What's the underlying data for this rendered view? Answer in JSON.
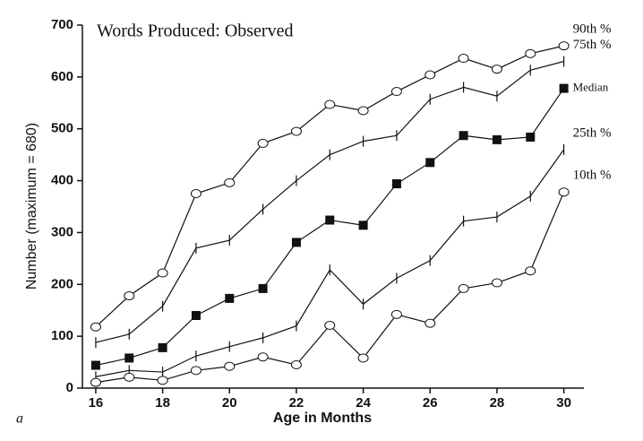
{
  "chart_data": {
    "type": "line",
    "title": "Words Produced: Observed",
    "x_label": "Age in Months",
    "y_label": "Number (maximum = 680)",
    "panel_label": "a",
    "x": [
      16,
      17,
      18,
      19,
      20,
      21,
      22,
      23,
      24,
      25,
      26,
      27,
      28,
      29,
      30
    ],
    "xlim": [
      15.6,
      30.6
    ],
    "xticks": [
      16,
      18,
      20,
      22,
      24,
      26,
      28,
      30
    ],
    "ylim": [
      0,
      700
    ],
    "yticks": [
      0,
      100,
      200,
      300,
      400,
      500,
      600,
      700
    ],
    "series": [
      {
        "name": "90th %",
        "color": "#111111",
        "marker": "circle",
        "values": [
          118,
          178,
          222,
          375,
          396,
          472,
          495,
          547,
          535,
          572,
          604,
          636,
          615,
          645,
          660
        ]
      },
      {
        "name": "75th %",
        "color": "#111111",
        "marker": "tick",
        "values": [
          88,
          104,
          158,
          270,
          285,
          345,
          400,
          450,
          476,
          487,
          557,
          580,
          563,
          613,
          630
        ]
      },
      {
        "name": "Median",
        "color": "#111111",
        "marker": "square",
        "values": [
          44,
          58,
          78,
          140,
          173,
          192,
          281,
          324,
          314,
          394,
          435,
          487,
          479,
          484,
          578
        ]
      },
      {
        "name": "25th %",
        "color": "#111111",
        "marker": "tick",
        "values": [
          22,
          34,
          31,
          62,
          80,
          97,
          120,
          228,
          162,
          212,
          246,
          322,
          330,
          370,
          460
        ]
      },
      {
        "name": "10th %",
        "color": "#111111",
        "marker": "circle",
        "values": [
          11,
          21,
          15,
          34,
          42,
          60,
          45,
          121,
          58,
          142,
          125,
          192,
          203,
          226,
          378
        ]
      }
    ]
  }
}
